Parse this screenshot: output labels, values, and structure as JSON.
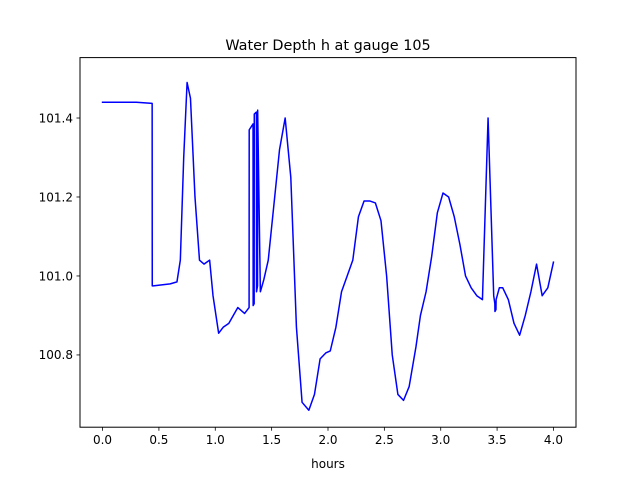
{
  "chart_data": {
    "type": "line",
    "title": "Water Depth h at gauge 105",
    "xlabel": "hours",
    "ylabel": "",
    "xlim": [
      -0.2,
      4.2
    ],
    "ylim": [
      100.617,
      101.553
    ],
    "xticks": [
      0.0,
      0.5,
      1.0,
      1.5,
      2.0,
      2.5,
      3.0,
      3.5,
      4.0
    ],
    "xtick_labels": [
      "0.0",
      "0.5",
      "1.0",
      "1.5",
      "2.0",
      "2.5",
      "3.0",
      "3.5",
      "4.0"
    ],
    "yticks": [
      100.8,
      101.0,
      101.2,
      101.4
    ],
    "ytick_labels": [
      "100.8",
      "101.0",
      "101.2",
      "101.4"
    ],
    "grid": false,
    "series": [
      {
        "color": "#0000ff",
        "x": [
          0.0,
          0.3,
          0.44,
          0.441,
          0.45,
          0.6,
          0.66,
          0.69,
          0.72,
          0.75,
          0.78,
          0.82,
          0.86,
          0.9,
          0.95,
          0.98,
          1.03,
          1.07,
          1.12,
          1.2,
          1.26,
          1.3,
          1.301,
          1.335,
          1.336,
          1.345,
          1.346,
          1.365,
          1.366,
          1.375,
          1.376,
          1.4,
          1.43,
          1.47,
          1.52,
          1.57,
          1.62,
          1.67,
          1.72,
          1.77,
          1.83,
          1.88,
          1.93,
          1.98,
          2.02,
          2.07,
          2.12,
          2.17,
          2.22,
          2.27,
          2.32,
          2.37,
          2.42,
          2.47,
          2.52,
          2.57,
          2.62,
          2.67,
          2.72,
          2.78,
          2.82,
          2.87,
          2.92,
          2.97,
          3.02,
          3.07,
          3.12,
          3.17,
          3.22,
          3.27,
          3.32,
          3.37,
          3.42,
          3.47,
          3.48,
          3.481,
          3.49,
          3.491,
          3.52,
          3.55,
          3.6,
          3.65,
          3.7,
          3.75,
          3.8,
          3.85,
          3.9,
          3.95,
          4.0
        ],
        "y": [
          101.44,
          101.44,
          101.437,
          100.975,
          100.975,
          100.98,
          100.985,
          101.04,
          101.3,
          101.49,
          101.45,
          101.2,
          101.04,
          101.03,
          101.04,
          100.95,
          100.855,
          100.87,
          100.88,
          100.92,
          100.905,
          100.92,
          101.37,
          101.385,
          100.925,
          100.93,
          101.41,
          101.415,
          100.96,
          100.975,
          101.42,
          100.96,
          100.99,
          101.04,
          101.18,
          101.32,
          101.4,
          101.25,
          100.87,
          100.68,
          100.66,
          100.7,
          100.79,
          100.805,
          100.81,
          100.87,
          100.96,
          101.0,
          101.04,
          101.15,
          101.19,
          101.19,
          101.185,
          101.14,
          101.0,
          100.8,
          100.7,
          100.685,
          100.72,
          100.82,
          100.9,
          100.96,
          101.05,
          101.16,
          101.21,
          101.2,
          101.15,
          101.08,
          101.0,
          100.97,
          100.95,
          100.94,
          101.4,
          100.95,
          100.93,
          100.91,
          100.915,
          100.94,
          100.97,
          100.97,
          100.94,
          100.88,
          100.85,
          100.9,
          100.96,
          101.03,
          100.95,
          100.97,
          101.035
        ]
      }
    ]
  }
}
